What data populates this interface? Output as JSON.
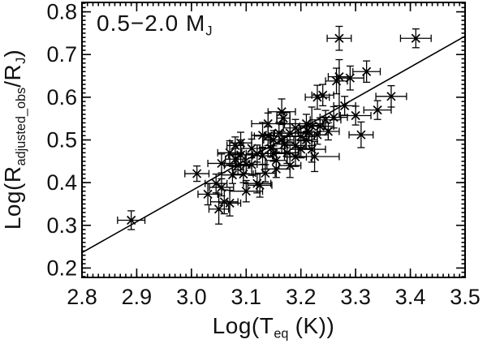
{
  "chart_data": {
    "type": "scatter",
    "title": "",
    "annotation": "0.5−2.0 M_J",
    "annotation_parts": [
      "0.5−2.0 M",
      "J"
    ],
    "xlabel": "Log(T_eq (K))",
    "xlabel_parts": [
      "Log(T",
      "eq",
      " (K))"
    ],
    "ylabel": "Log(R_adjusted_obs/R_J)",
    "ylabel_parts": [
      "Log(R",
      "adjusted_obs",
      "/R",
      "J",
      ")"
    ],
    "xlim": [
      2.8,
      3.5
    ],
    "ylim": [
      0.178,
      0.822
    ],
    "xticks": [
      2.8,
      2.9,
      3.0,
      3.1,
      3.2,
      3.3,
      3.4,
      3.5
    ],
    "xtick_labels": [
      "2.8",
      "2.9",
      "3.0",
      "3.1",
      "3.2",
      "3.3",
      "3.4",
      "3.5"
    ],
    "yticks": [
      0.2,
      0.3,
      0.4,
      0.5,
      0.6,
      0.7,
      0.8
    ],
    "ytick_labels": [
      "0.2",
      "0.3",
      "0.4",
      "0.5",
      "0.6",
      "0.7",
      "0.8"
    ],
    "minor_tick_step": {
      "x": 0.01,
      "y": 0.01
    },
    "grid": "off",
    "legend": "none",
    "marker": "x-with-error-bars",
    "line_color": "#000000",
    "marker_color": "#000000",
    "fit_line": {
      "x1": 2.8,
      "y1": 0.236,
      "x2": 3.5,
      "y2": 0.743
    },
    "boxed_point": [
      3.168,
      0.551,
      0.012,
      0.012
    ],
    "points": [
      [
        2.89,
        0.312,
        0.025,
        0.022
      ],
      [
        3.01,
        0.421,
        0.022,
        0.018
      ],
      [
        3.03,
        0.373,
        0.018,
        0.025
      ],
      [
        3.045,
        0.398,
        0.02,
        0.022
      ],
      [
        3.05,
        0.338,
        0.018,
        0.035
      ],
      [
        3.055,
        0.389,
        0.022,
        0.02
      ],
      [
        3.06,
        0.355,
        0.025,
        0.028
      ],
      [
        3.07,
        0.352,
        0.02,
        0.03
      ],
      [
        3.1,
        0.38,
        0.03,
        0.025
      ],
      [
        3.12,
        0.398,
        0.025,
        0.022
      ],
      [
        3.055,
        0.445,
        0.025,
        0.022
      ],
      [
        3.07,
        0.47,
        0.022,
        0.028
      ],
      [
        3.075,
        0.418,
        0.02,
        0.02
      ],
      [
        3.08,
        0.455,
        0.018,
        0.025
      ],
      [
        3.08,
        0.487,
        0.015,
        0.02
      ],
      [
        3.085,
        0.44,
        0.025,
        0.02
      ],
      [
        3.09,
        0.493,
        0.02,
        0.025
      ],
      [
        3.09,
        0.465,
        0.022,
        0.035
      ],
      [
        3.095,
        0.42,
        0.018,
        0.02
      ],
      [
        3.1,
        0.443,
        0.02,
        0.022
      ],
      [
        3.11,
        0.48,
        0.02,
        0.022
      ],
      [
        3.11,
        0.442,
        0.028,
        0.025
      ],
      [
        3.12,
        0.468,
        0.02,
        0.02
      ],
      [
        3.125,
        0.394,
        0.022,
        0.028
      ],
      [
        3.13,
        0.511,
        0.02,
        0.03
      ],
      [
        3.13,
        0.463,
        0.018,
        0.02
      ],
      [
        3.135,
        0.422,
        0.018,
        0.02
      ],
      [
        3.14,
        0.509,
        0.025,
        0.022
      ],
      [
        3.14,
        0.538,
        0.03,
        0.025
      ],
      [
        3.145,
        0.48,
        0.02,
        0.02
      ],
      [
        3.15,
        0.468,
        0.022,
        0.018
      ],
      [
        3.15,
        0.5,
        0.018,
        0.022
      ],
      [
        3.155,
        0.432,
        0.025,
        0.02
      ],
      [
        3.155,
        0.452,
        0.02,
        0.02
      ],
      [
        3.16,
        0.516,
        0.02,
        0.025
      ],
      [
        3.165,
        0.566,
        0.025,
        0.03
      ],
      [
        3.165,
        0.5,
        0.022,
        0.02
      ],
      [
        3.17,
        0.49,
        0.02,
        0.02
      ],
      [
        3.175,
        0.47,
        0.022,
        0.025
      ],
      [
        3.18,
        0.516,
        0.028,
        0.022
      ],
      [
        3.18,
        0.44,
        0.02,
        0.028
      ],
      [
        3.19,
        0.528,
        0.022,
        0.02
      ],
      [
        3.19,
        0.487,
        0.018,
        0.022
      ],
      [
        3.19,
        0.46,
        0.02,
        0.022
      ],
      [
        3.2,
        0.508,
        0.025,
        0.025
      ],
      [
        3.2,
        0.478,
        0.02,
        0.02
      ],
      [
        3.21,
        0.538,
        0.03,
        0.022
      ],
      [
        3.21,
        0.5,
        0.02,
        0.02
      ],
      [
        3.215,
        0.518,
        0.02,
        0.02
      ],
      [
        3.22,
        0.532,
        0.022,
        0.045
      ],
      [
        3.22,
        0.478,
        0.025,
        0.03
      ],
      [
        3.225,
        0.461,
        0.045,
        0.035
      ],
      [
        3.23,
        0.512,
        0.02,
        0.022
      ],
      [
        3.23,
        0.6,
        0.022,
        0.028
      ],
      [
        3.235,
        0.532,
        0.025,
        0.02
      ],
      [
        3.24,
        0.605,
        0.02,
        0.025
      ],
      [
        3.245,
        0.547,
        0.028,
        0.022
      ],
      [
        3.25,
        0.52,
        0.02,
        0.02
      ],
      [
        3.26,
        0.553,
        0.025,
        0.025
      ],
      [
        3.265,
        0.638,
        0.02,
        0.03
      ],
      [
        3.27,
        0.648,
        0.02,
        0.04,
        0.095
      ],
      [
        3.27,
        0.738,
        0.022,
        0.028
      ],
      [
        3.28,
        0.58,
        0.02,
        0.022
      ],
      [
        3.29,
        0.645,
        0.025,
        0.028
      ],
      [
        3.3,
        0.557,
        0.028,
        0.022
      ],
      [
        3.31,
        0.512,
        0.022,
        0.03
      ],
      [
        3.32,
        0.66,
        0.025,
        0.025
      ],
      [
        3.34,
        0.57,
        0.025,
        0.022
      ],
      [
        3.365,
        0.602,
        0.028,
        0.025
      ],
      [
        3.41,
        0.738,
        0.028,
        0.022
      ]
    ]
  }
}
